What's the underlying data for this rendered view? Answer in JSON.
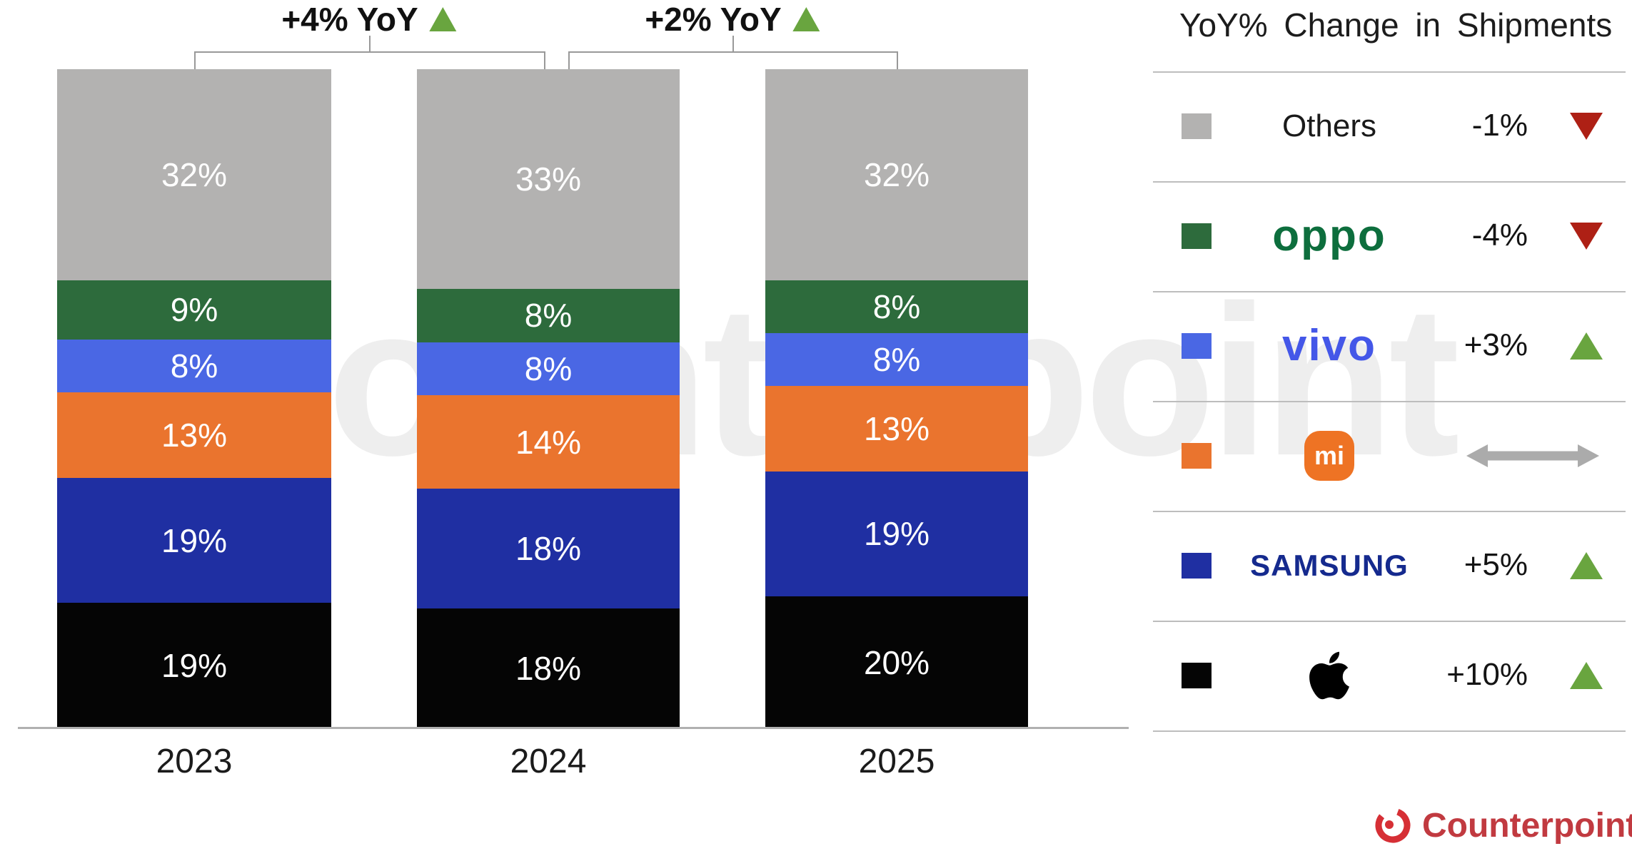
{
  "watermark": {
    "text": "Counterpoint"
  },
  "source": {
    "brand": "Counterpoint"
  },
  "chart_data": {
    "type": "bar",
    "stacked": true,
    "categories": [
      "2023",
      "2024",
      "2025"
    ],
    "series": [
      {
        "name": "Others",
        "color": "#b3b2b1",
        "values": [
          32,
          33,
          32
        ]
      },
      {
        "name": "OPPO",
        "color": "#2d6b3c",
        "values": [
          9,
          8,
          8
        ]
      },
      {
        "name": "vivo",
        "color": "#4a67e4",
        "values": [
          8,
          8,
          8
        ]
      },
      {
        "name": "Xiaomi",
        "color": "#ea742e",
        "values": [
          13,
          14,
          13
        ]
      },
      {
        "name": "Samsung",
        "color": "#1f2fa2",
        "values": [
          19,
          18,
          19
        ]
      },
      {
        "name": "Apple",
        "color": "#050505",
        "values": [
          19,
          18,
          20
        ]
      }
    ],
    "stack_order_top_to_bottom": [
      "Others",
      "OPPO",
      "vivo",
      "Xiaomi",
      "Samsung",
      "Apple"
    ],
    "value_suffix": "%",
    "annotations": [
      {
        "label": "+4% YoY",
        "direction": "up",
        "from": "2023",
        "to": "2024"
      },
      {
        "label": "+2% YoY",
        "direction": "up",
        "from": "2024",
        "to": "2025"
      }
    ],
    "legend_position": "right",
    "grid": false
  },
  "legend": {
    "title": "YoY% Change in Shipments",
    "rows": [
      {
        "key": "others",
        "label": "Others",
        "swatch": "#b3b2b1",
        "change": "-1%",
        "direction": "down",
        "logo_color": "#1a1a1a"
      },
      {
        "key": "oppo",
        "label": "oppo",
        "swatch": "#2d6b3c",
        "change": "-4%",
        "direction": "down",
        "logo_color": "#0d6e3d"
      },
      {
        "key": "vivo",
        "label": "vivo",
        "swatch": "#4a67e4",
        "change": "+3%",
        "direction": "up",
        "logo_color": "#4457e8"
      },
      {
        "key": "xiaomi",
        "label": "mi",
        "swatch": "#ea742e",
        "change": "",
        "direction": "flat",
        "logo_color": "#ee7324"
      },
      {
        "key": "samsung",
        "label": "SAMSUNG",
        "swatch": "#1f2fa2",
        "change": "+5%",
        "direction": "up",
        "logo_color": "#152a8e"
      },
      {
        "key": "apple",
        "label": "",
        "swatch": "#050505",
        "change": "+10%",
        "direction": "up",
        "logo_color": "#000000"
      }
    ],
    "indicator_colors": {
      "up": "#69a53f",
      "down": "#ae2015",
      "flat": "#ababab"
    }
  }
}
